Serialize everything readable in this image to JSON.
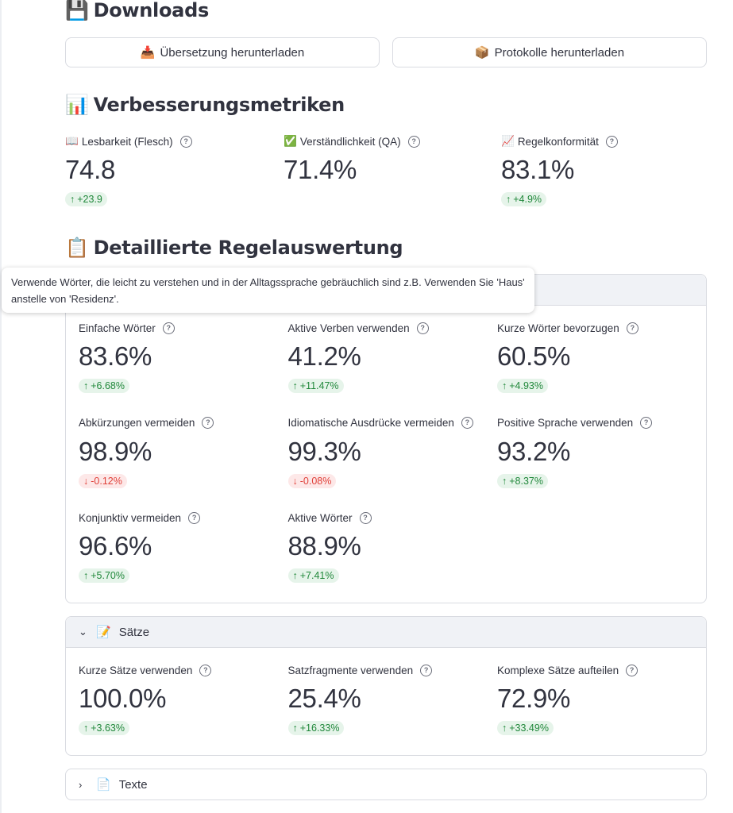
{
  "downloads": {
    "icon": "💾",
    "title": "Downloads",
    "buttons": [
      {
        "icon": "📥",
        "label": "Übersetzung herunterladen"
      },
      {
        "icon": "📦",
        "label": "Protokolle herunterladen"
      }
    ]
  },
  "metrics": {
    "icon": "📊",
    "title": "Verbesserungsmetriken",
    "items": [
      {
        "icon": "📖",
        "label": "Lesbarkeit (Flesch)",
        "value": "74.8",
        "delta": "+23.9",
        "direction": "up"
      },
      {
        "icon": "✅",
        "label": "Verständlichkeit (QA)",
        "value": "71.4%",
        "delta": "",
        "direction": "none"
      },
      {
        "icon": "📈",
        "label": "Regelkonformität",
        "value": "83.1%",
        "delta": "+4.9%",
        "direction": "up"
      }
    ]
  },
  "rules": {
    "icon": "📋",
    "title": "Detaillierte Regelauswertung",
    "tooltip": "Verwende Wörter, die leicht zu verstehen und in der Alltagssprache gebräuchlich sind z.B. Verwenden Sie 'Haus' anstelle von 'Residenz'.",
    "words": [
      {
        "label": "Einfache Wörter",
        "value": "83.6%",
        "delta": "+6.68%",
        "direction": "up"
      },
      {
        "label": "Aktive Verben verwenden",
        "value": "41.2%",
        "delta": "+11.47%",
        "direction": "up"
      },
      {
        "label": "Kurze Wörter bevorzugen",
        "value": "60.5%",
        "delta": "+4.93%",
        "direction": "up"
      },
      {
        "label": "Abkürzungen vermeiden",
        "value": "98.9%",
        "delta": "-0.12%",
        "direction": "down"
      },
      {
        "label": "Idiomatische Ausdrücke vermeiden",
        "value": "99.3%",
        "delta": "-0.08%",
        "direction": "down"
      },
      {
        "label": "Positive Sprache verwenden",
        "value": "93.2%",
        "delta": "+8.37%",
        "direction": "up"
      },
      {
        "label": "Konjunktiv vermeiden",
        "value": "96.6%",
        "delta": "+5.70%",
        "direction": "up"
      },
      {
        "label": "Aktive Wörter",
        "value": "88.9%",
        "delta": "+7.41%",
        "direction": "up"
      }
    ],
    "saetze": {
      "icon": "📝",
      "title": "Sätze",
      "items": [
        {
          "label": "Kurze Sätze verwenden",
          "value": "100.0%",
          "delta": "+3.63%",
          "direction": "up"
        },
        {
          "label": "Satzfragmente verwenden",
          "value": "25.4%",
          "delta": "+16.33%",
          "direction": "up"
        },
        {
          "label": "Komplexe Sätze aufteilen",
          "value": "72.9%",
          "delta": "+33.49%",
          "direction": "up"
        }
      ]
    },
    "texte": {
      "icon": "📄",
      "title": "Texte"
    }
  },
  "icons": {
    "help": "question-circle-icon",
    "arrow_up": "arrow-up-icon",
    "arrow_down": "arrow-down-icon",
    "chevron_down": "chevron-down-icon",
    "chevron_right": "chevron-right-icon"
  },
  "colors": {
    "delta_up_bg": "#e6f4ea",
    "delta_up_fg": "#21883b",
    "delta_down_bg": "#fde8e8",
    "delta_down_fg": "#e0413a",
    "expander_header": "#f0f2f6",
    "border": "#d9dbe1"
  }
}
